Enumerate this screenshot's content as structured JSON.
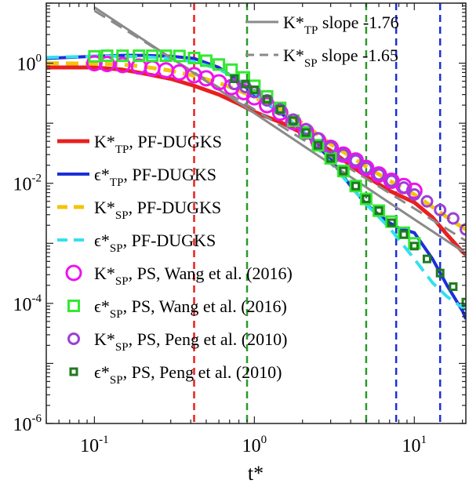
{
  "chart_data": {
    "type": "line",
    "xscale": "log",
    "yscale": "log",
    "xlim": [
      0.05,
      21
    ],
    "ylim": [
      1e-06,
      10
    ],
    "xlabel": "t*",
    "ylabel": "",
    "grid": false,
    "x_ticks": [
      {
        "value": 0.1,
        "base": "10",
        "exp": "-1"
      },
      {
        "value": 1,
        "base": "10",
        "exp": "0"
      },
      {
        "value": 10,
        "base": "10",
        "exp": "1"
      }
    ],
    "y_ticks": [
      {
        "value": 1,
        "base": "10",
        "exp": "0"
      },
      {
        "value": 0.01,
        "base": "10",
        "exp": "-2"
      },
      {
        "value": 0.0001,
        "base": "10",
        "exp": "-4"
      },
      {
        "value": 1e-06,
        "base": "10",
        "exp": "-6"
      }
    ],
    "vlines": [
      {
        "x": 0.42,
        "color": "#e8201f"
      },
      {
        "x": 0.9,
        "color": "#2a9a2a"
      },
      {
        "x": 5.0,
        "color": "#2a9a2a"
      },
      {
        "x": 7.7,
        "color": "#1b2fd8"
      },
      {
        "x": 14.5,
        "color": "#1b2fd8"
      }
    ],
    "series": [
      {
        "name_main": "K*",
        "name_sub": "TP",
        "name_tail": ", PF-DUGKS",
        "legend": "lower",
        "color": "#e8201f",
        "style": "solid",
        "width": 5,
        "x": [
          0.05,
          0.1,
          0.15,
          0.2,
          0.3,
          0.42,
          0.6,
          0.8,
          1.0,
          1.5,
          2.0,
          3.0,
          4.0,
          5.0,
          7.0,
          10.0,
          13.0,
          16.0,
          20.0,
          21.0
        ],
        "y": [
          0.85,
          0.85,
          0.78,
          0.68,
          0.55,
          0.42,
          0.3,
          0.21,
          0.155,
          0.1,
          0.068,
          0.035,
          0.02,
          0.013,
          0.0075,
          0.0048,
          0.0027,
          0.0014,
          0.00072,
          0.00065
        ]
      },
      {
        "name_main": "ϵ*",
        "name_sub": "TP",
        "name_tail": ", PF-DUGKS",
        "legend": "lower",
        "color": "#1b2fd8",
        "style": "solid",
        "width": 4,
        "x": [
          0.05,
          0.1,
          0.15,
          0.2,
          0.3,
          0.42,
          0.6,
          0.8,
          1.0,
          1.5,
          2.0,
          3.0,
          4.0,
          5.0,
          6.0,
          7.0,
          8.0,
          10.0,
          13.0,
          16.0,
          20.0,
          21.0
        ],
        "y": [
          1.2,
          1.3,
          1.35,
          1.35,
          1.3,
          1.2,
          0.85,
          0.5,
          0.3,
          0.14,
          0.075,
          0.025,
          0.009,
          0.0045,
          0.003,
          0.0022,
          0.0018,
          0.0015,
          0.00055,
          0.0002,
          7.5e-05,
          5.5e-05
        ]
      },
      {
        "name_main": "K*",
        "name_sub": "SP",
        "name_tail": ", PF-DUGKS",
        "legend": "lower",
        "color": "#f2c40c",
        "style": "dash",
        "width": 5,
        "x": [
          0.05,
          0.1,
          0.15,
          0.2,
          0.3,
          0.42,
          0.6,
          0.8,
          1.0,
          1.5,
          2.0,
          3.0,
          4.0,
          5.0,
          7.0,
          10.0,
          14.0,
          18.0,
          21.0
        ],
        "y": [
          1.0,
          0.98,
          0.95,
          0.88,
          0.75,
          0.62,
          0.47,
          0.35,
          0.27,
          0.16,
          0.1,
          0.045,
          0.028,
          0.019,
          0.011,
          0.0065,
          0.0035,
          0.0022,
          0.0017
        ]
      },
      {
        "name_main": "ϵ*",
        "name_sub": "SP",
        "name_tail": ", PF-DUGKS",
        "legend": "lower",
        "color": "#33e0f0",
        "style": "dash",
        "width": 4,
        "x": [
          0.05,
          0.1,
          0.15,
          0.2,
          0.3,
          0.42,
          0.6,
          0.8,
          1.0,
          1.5,
          2.0,
          3.0,
          4.0,
          5.0,
          7.0,
          10.0,
          13.0,
          16.0,
          20.0,
          21.0
        ],
        "y": [
          1.25,
          1.3,
          1.3,
          1.28,
          1.2,
          1.05,
          0.8,
          0.52,
          0.32,
          0.14,
          0.075,
          0.022,
          0.009,
          0.0045,
          0.0018,
          0.00055,
          0.00022,
          0.00013,
          8.5e-05,
          8e-05
        ]
      },
      {
        "name_main": "K*",
        "name_sub": "TP",
        "name_tail": " slope -1.76",
        "legend": "upper",
        "color": "#8a8a8a",
        "style": "solid",
        "width": 3,
        "x": [
          0.1,
          0.42,
          1.0,
          2.0,
          5.0,
          10.0,
          21.0
        ],
        "y": [
          8.5,
          0.68,
          0.147,
          0.043,
          0.0086,
          0.0025,
          0.00068
        ]
      },
      {
        "name_main": "K*",
        "name_sub": "SP",
        "name_tail": " slope -1.65",
        "legend": "upper",
        "color": "#8a8a8a",
        "style": "dash",
        "width": 3,
        "x": [
          0.1,
          0.42,
          1.0,
          2.0,
          5.0,
          10.0,
          21.0
        ],
        "y": [
          7.5,
          0.7,
          0.17,
          0.054,
          0.012,
          0.0038,
          0.0011
        ]
      }
    ],
    "scatter": [
      {
        "name_main": "K*",
        "name_sub": "SP",
        "name_tail": ", PS, Wang et al. (2016)",
        "marker": "circle",
        "color": "#ee12ee",
        "size": 9,
        "stroke": 3,
        "x": [
          0.1,
          0.12,
          0.15,
          0.19,
          0.23,
          0.28,
          0.34,
          0.42,
          0.5,
          0.6,
          0.72,
          0.86,
          1.0,
          1.2,
          1.45,
          1.75,
          2.1,
          2.5,
          3.0,
          3.6,
          4.3,
          5.0,
          6.0,
          7.2,
          8.6,
          10.0
        ],
        "y": [
          1.0,
          0.97,
          0.93,
          0.88,
          0.82,
          0.76,
          0.7,
          0.63,
          0.56,
          0.48,
          0.4,
          0.33,
          0.27,
          0.2,
          0.15,
          0.105,
          0.073,
          0.052,
          0.039,
          0.03,
          0.024,
          0.018,
          0.014,
          0.011,
          0.009,
          0.0075
        ]
      },
      {
        "name_main": "ϵ*",
        "name_sub": "SP",
        "name_tail": ", PS, Wang et al. (2016)",
        "marker": "square",
        "color": "#33e833",
        "size": 13,
        "stroke": 3,
        "x": [
          0.1,
          0.12,
          0.15,
          0.19,
          0.23,
          0.28,
          0.34,
          0.42,
          0.5,
          0.6,
          0.72,
          0.86,
          1.0,
          1.2,
          1.45,
          1.75,
          2.1,
          2.5,
          3.0,
          3.6,
          4.3,
          5.0,
          6.0,
          7.2,
          8.6,
          10.0
        ],
        "y": [
          1.3,
          1.33,
          1.33,
          1.33,
          1.33,
          1.33,
          1.32,
          1.22,
          1.1,
          0.95,
          0.78,
          0.58,
          0.42,
          0.28,
          0.18,
          0.11,
          0.07,
          0.043,
          0.026,
          0.016,
          0.009,
          0.0055,
          0.0035,
          0.0023,
          0.0015,
          0.001
        ]
      },
      {
        "name_main": "K*",
        "name_sub": "SP",
        "name_tail": ", PS, Peng et al. (2010)",
        "marker": "circle",
        "color": "#9b40d6",
        "size": 6.5,
        "stroke": 3,
        "x": [
          0.75,
          0.88,
          1.0,
          1.2,
          1.45,
          1.75,
          2.1,
          2.5,
          3.0,
          3.6,
          4.3,
          5.0,
          6.0,
          7.2,
          8.6,
          10.0,
          12.0,
          14.5,
          17.5,
          21.0
        ],
        "y": [
          0.45,
          0.4,
          0.33,
          0.24,
          0.17,
          0.115,
          0.08,
          0.056,
          0.04,
          0.03,
          0.024,
          0.018,
          0.014,
          0.011,
          0.0085,
          0.0065,
          0.005,
          0.0036,
          0.0026,
          0.0017
        ]
      },
      {
        "name_main": "ϵ*",
        "name_sub": "SP",
        "name_tail": ", PS, Peng et al. (2010)",
        "marker": "square",
        "color": "#1e7a1e",
        "size": 8,
        "stroke": 3,
        "x": [
          0.75,
          0.88,
          1.0,
          1.2,
          1.45,
          1.75,
          2.1,
          2.5,
          3.0,
          3.6,
          4.3,
          5.0,
          6.0,
          7.2,
          8.6,
          10.0,
          12.0,
          14.5,
          17.5,
          21.0
        ],
        "y": [
          0.55,
          0.45,
          0.36,
          0.25,
          0.17,
          0.11,
          0.07,
          0.043,
          0.026,
          0.016,
          0.009,
          0.0055,
          0.0035,
          0.0022,
          0.0014,
          0.0009,
          0.00055,
          0.00032,
          0.00019,
          0.000105
        ]
      }
    ]
  }
}
